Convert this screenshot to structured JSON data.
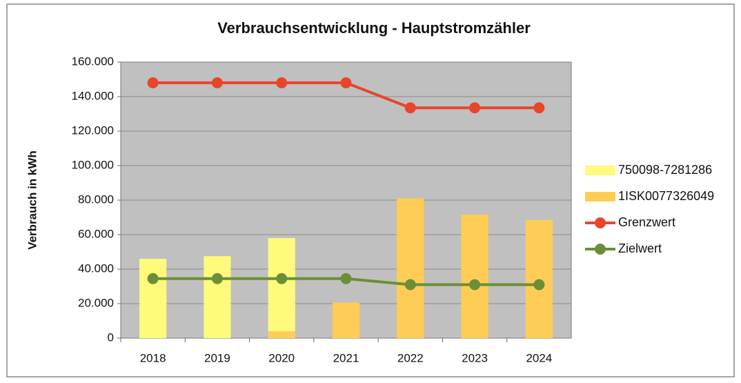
{
  "chart_data": {
    "type": "bar",
    "title": "Verbrauchsentwicklung - Hauptstromzähler",
    "y_label": "Verbrauch in kWh",
    "categories": [
      "2018",
      "2019",
      "2020",
      "2021",
      "2022",
      "2023",
      "2024"
    ],
    "series": [
      {
        "name": "750098-7281286",
        "type": "bar",
        "color": "#fdfa7c",
        "values": [
          46000,
          47500,
          54000,
          null,
          null,
          null,
          null
        ]
      },
      {
        "name": "1ISK0077326049",
        "type": "bar",
        "color": "#ffcd55",
        "values": [
          null,
          null,
          4000,
          20500,
          81000,
          71500,
          68500
        ]
      },
      {
        "name": "Grenzwert",
        "type": "line",
        "color": "#e8452b",
        "values": [
          148000,
          148000,
          148000,
          148000,
          133500,
          133500,
          133500
        ]
      },
      {
        "name": "Zielwert",
        "type": "line",
        "color": "#6b8e3a",
        "values": [
          34500,
          34500,
          34500,
          34500,
          31000,
          31000,
          31000
        ]
      }
    ],
    "stacked": true,
    "ylim": [
      0,
      160000
    ],
    "yticks": [
      0,
      {
        "value": 20000,
        "label": "20.000"
      },
      {
        "value": 40000,
        "label": "40.000"
      },
      {
        "value": 60000,
        "label": "60.000"
      },
      {
        "value": 80000,
        "label": "80.000"
      },
      {
        "value": 100000,
        "label": "100.000"
      },
      {
        "value": 120000,
        "label": "120.000"
      },
      {
        "value": 140000,
        "label": "140.000"
      },
      {
        "value": 160000,
        "label": "160.000"
      }
    ],
    "grid": true,
    "plot_background": "#c0c0c0",
    "legend": "right"
  }
}
